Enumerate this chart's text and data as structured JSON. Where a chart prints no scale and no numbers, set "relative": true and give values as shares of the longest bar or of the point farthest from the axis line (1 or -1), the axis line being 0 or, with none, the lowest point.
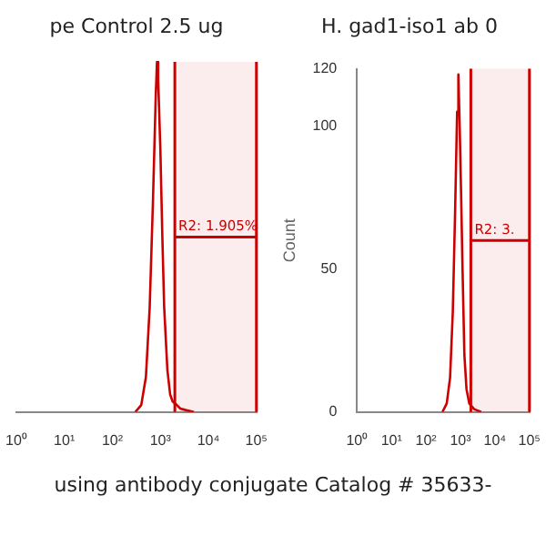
{
  "chart_data": [
    {
      "type": "line",
      "title": "pe Control 2.5 ug",
      "relative": true,
      "log": "x",
      "grid": false,
      "legend": false,
      "marker": "none",
      "color": "#cc0000",
      "x": [
        300,
        400,
        500,
        600,
        700,
        800,
        850,
        900,
        1000,
        1100,
        1200,
        1400,
        1600,
        1800,
        2200,
        2600,
        3500,
        5000
      ],
      "values": [
        0,
        0.02,
        0.1,
        0.3,
        0.6,
        0.9,
        1,
        0.95,
        0.75,
        0.5,
        0.3,
        0.12,
        0.05,
        0.03,
        0.02,
        0.01,
        0.005,
        0
      ],
      "xlim": [
        1,
        100000
      ],
      "xticks": [
        {
          "value": 1,
          "label": "10⁰"
        },
        {
          "value": 10,
          "label": "10¹"
        },
        {
          "value": 100,
          "label": "10²"
        },
        {
          "value": 1000,
          "label": "10³"
        },
        {
          "value": 10000,
          "label": "10⁴"
        },
        {
          "value": 100000,
          "label": "10⁵"
        }
      ],
      "bands": [
        {
          "axis": "x",
          "from": 2000,
          "to": 100000,
          "label": "R2: 1.905%",
          "color": "#cc0000"
        }
      ],
      "ref_lines": [
        {
          "axis": "x",
          "value": 2000,
          "color": "#cc0000"
        },
        {
          "axis": "x",
          "value": 100000,
          "color": "#cc0000"
        }
      ],
      "annotations": [
        "using antibody conjugate Catalog # 35633-"
      ]
    },
    {
      "type": "line",
      "title": "H. gad1-iso1 ab 0",
      "ylabel": "Count",
      "log": "x",
      "grid": false,
      "legend": false,
      "marker": "none",
      "color": "#cc0000",
      "x": [
        300,
        400,
        500,
        600,
        700,
        800,
        870,
        950,
        1050,
        1150,
        1300,
        1500,
        1800,
        2500,
        4000
      ],
      "values": [
        0,
        3,
        12,
        35,
        70,
        105,
        118,
        100,
        75,
        50,
        20,
        8,
        3,
        1,
        0
      ],
      "xlim": [
        1,
        100000
      ],
      "xticks": [
        {
          "value": 1,
          "label": "10⁰"
        },
        {
          "value": 10,
          "label": "10¹"
        },
        {
          "value": 100,
          "label": "10²"
        },
        {
          "value": 1000,
          "label": "10³"
        },
        {
          "value": 10000,
          "label": "10⁴"
        },
        {
          "value": 100000,
          "label": "10⁵"
        }
      ],
      "ylim": [
        0,
        120
      ],
      "yticks": [
        0,
        50,
        100,
        120
      ],
      "bands": [
        {
          "axis": "x",
          "from": 2000,
          "to": 100000,
          "label": "R2: 3.",
          "color": "#cc0000"
        }
      ],
      "ref_lines": [
        {
          "axis": "x",
          "value": 2000,
          "color": "#cc0000"
        },
        {
          "axis": "x",
          "value": 100000,
          "color": "#cc0000"
        }
      ]
    }
  ]
}
